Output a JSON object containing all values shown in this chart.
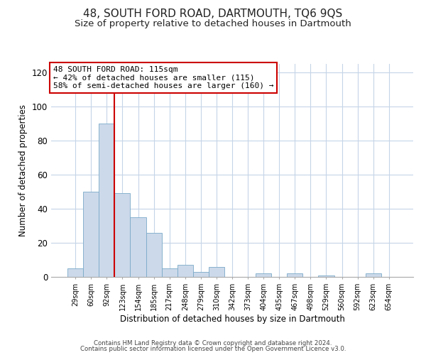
{
  "title": "48, SOUTH FORD ROAD, DARTMOUTH, TQ6 9QS",
  "subtitle": "Size of property relative to detached houses in Dartmouth",
  "xlabel": "Distribution of detached houses by size in Dartmouth",
  "ylabel": "Number of detached properties",
  "bar_labels": [
    "29sqm",
    "60sqm",
    "92sqm",
    "123sqm",
    "154sqm",
    "185sqm",
    "217sqm",
    "248sqm",
    "279sqm",
    "310sqm",
    "342sqm",
    "373sqm",
    "404sqm",
    "435sqm",
    "467sqm",
    "498sqm",
    "529sqm",
    "560sqm",
    "592sqm",
    "623sqm",
    "654sqm"
  ],
  "bar_values": [
    5,
    50,
    90,
    49,
    35,
    26,
    5,
    7,
    3,
    6,
    0,
    0,
    2,
    0,
    2,
    0,
    1,
    0,
    0,
    2,
    0
  ],
  "bar_color": "#ccd9ea",
  "bar_edgecolor": "#7aaac8",
  "ylim": [
    0,
    125
  ],
  "yticks": [
    0,
    20,
    40,
    60,
    80,
    100,
    120
  ],
  "vline_color": "#cc0000",
  "annotation_title": "48 SOUTH FORD ROAD: 115sqm",
  "annotation_line1": "← 42% of detached houses are smaller (115)",
  "annotation_line2": "58% of semi-detached houses are larger (160) →",
  "annotation_box_color": "#ffffff",
  "annotation_box_edgecolor": "#cc0000",
  "footer1": "Contains HM Land Registry data © Crown copyright and database right 2024.",
  "footer2": "Contains public sector information licensed under the Open Government Licence v3.0.",
  "bg_color": "#ffffff",
  "grid_color": "#c5d5e8",
  "title_fontsize": 11,
  "subtitle_fontsize": 9.5
}
